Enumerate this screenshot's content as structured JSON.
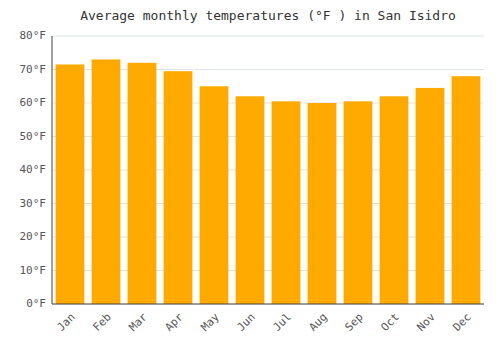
{
  "chart_data": {
    "type": "bar",
    "title": "Average monthly temperatures (°F ) in San Isidro",
    "categories": [
      "Jan",
      "Feb",
      "Mar",
      "Apr",
      "May",
      "Jun",
      "Jul",
      "Aug",
      "Sep",
      "Oct",
      "Nov",
      "Dec"
    ],
    "values": [
      71.5,
      73,
      72,
      69.5,
      65,
      62,
      60.5,
      60,
      60.5,
      62,
      64.5,
      68
    ],
    "color": "#FFAA00",
    "ylim": [
      0,
      80
    ],
    "yticks": [
      {
        "value": 0,
        "label": "0°F"
      },
      {
        "value": 10,
        "label": "10°F"
      },
      {
        "value": 20,
        "label": "20°F"
      },
      {
        "value": 30,
        "label": "30°F"
      },
      {
        "value": 40,
        "label": "40°F"
      },
      {
        "value": 50,
        "label": "50°F"
      },
      {
        "value": 60,
        "label": "60°F"
      },
      {
        "value": 70,
        "label": "70°F"
      },
      {
        "value": 80,
        "label": "80°F"
      }
    ],
    "grid": true
  }
}
